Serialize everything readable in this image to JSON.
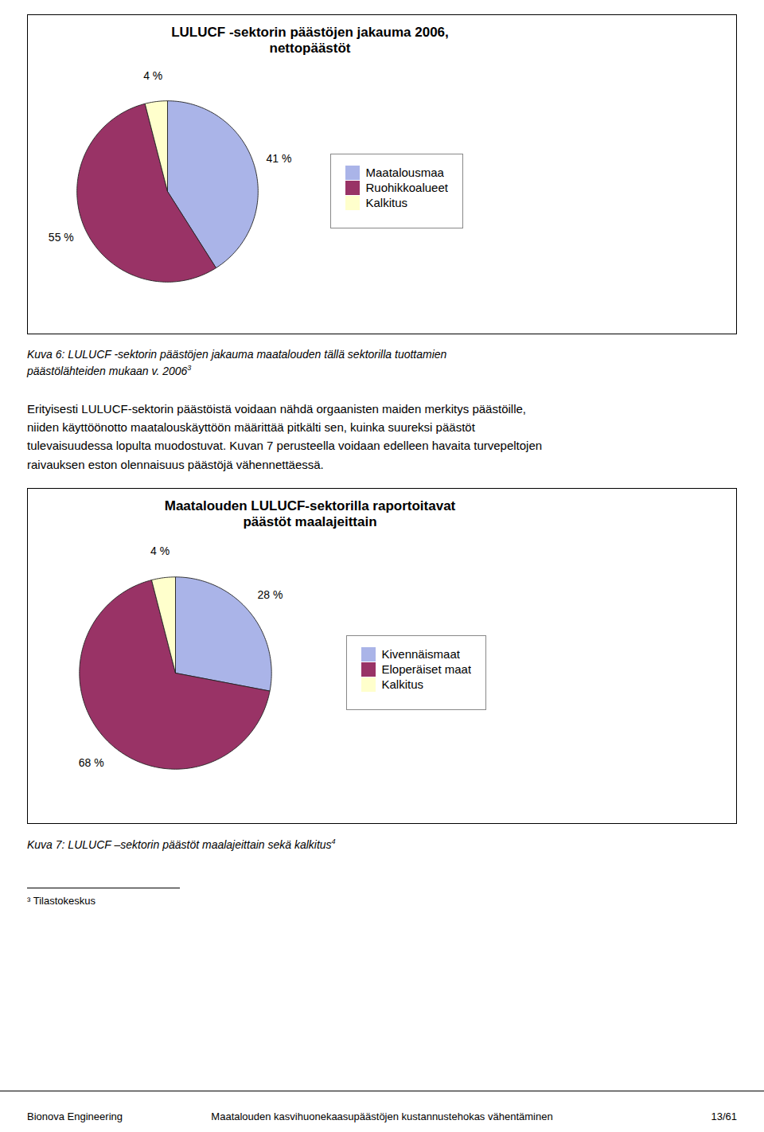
{
  "chart_data": [
    {
      "type": "pie",
      "title": "LULUCF -sektorin päästöjen jakauma 2006,\nnettopäästöt",
      "categories": [
        "Maatalousmaa",
        "Ruohikkoalueet",
        "Kalkitus"
      ],
      "values": [
        41,
        55,
        4
      ],
      "value_labels": [
        "41 %",
        "55 %",
        "4 %"
      ],
      "colors": [
        "#aab4e8",
        "#993366",
        "#ffffcc"
      ],
      "data_labels": true,
      "legend": "right",
      "annotations": [
        {
          "text": "Kuva 6: LULUCF -sektorin päästöjen jakauma maatalouden tällä sektorilla tuottamien"
        },
        {
          "text": "päästölähteiden mukaan v. 2006",
          "superscript": "3"
        },
        {
          "text": "Erityisesti LULUCF-sektorin päästöistä voidaan nähdä orgaanisten maiden merkitys päästöille,"
        },
        {
          "text": "niiden käyttöönotto maatalouskäyttöön määrittää pitkälti sen, kuinka suureksi päästöt"
        },
        {
          "text": "tulevaisuudessa lopulta muodostuvat. Kuvan 7 perusteella voidaan edelleen havaita turvepeltojen"
        },
        {
          "text": "raivauksen eston olennaisuus päästöjä vähennettäessä."
        }
      ]
    },
    {
      "type": "pie",
      "title": "Maatalouden LULUCF-sektorilla raportoitavat\npäästöt maalajeittain",
      "categories": [
        "Kivennäismaat",
        "Eloperäiset maat",
        "Kalkitus"
      ],
      "values": [
        28,
        68,
        4
      ],
      "value_labels": [
        "28 %",
        "68 %",
        "4 %"
      ],
      "colors": [
        "#aab4e8",
        "#993366",
        "#ffffcc"
      ],
      "data_labels": true,
      "legend": "right",
      "annotations": [
        {
          "text": "Kuva 7: LULUCF –sektorin päästöt maalajeittain sekä kalkitus",
          "superscript": "4"
        },
        {
          "text": "³ Tilastokeskus"
        },
        {
          "text": "Bionova Engineering"
        },
        {
          "text": "Maatalouden kasvihuonekaasupäästöjen kustannustehokas vähentäminen"
        },
        {
          "text": "13/61"
        }
      ]
    }
  ]
}
